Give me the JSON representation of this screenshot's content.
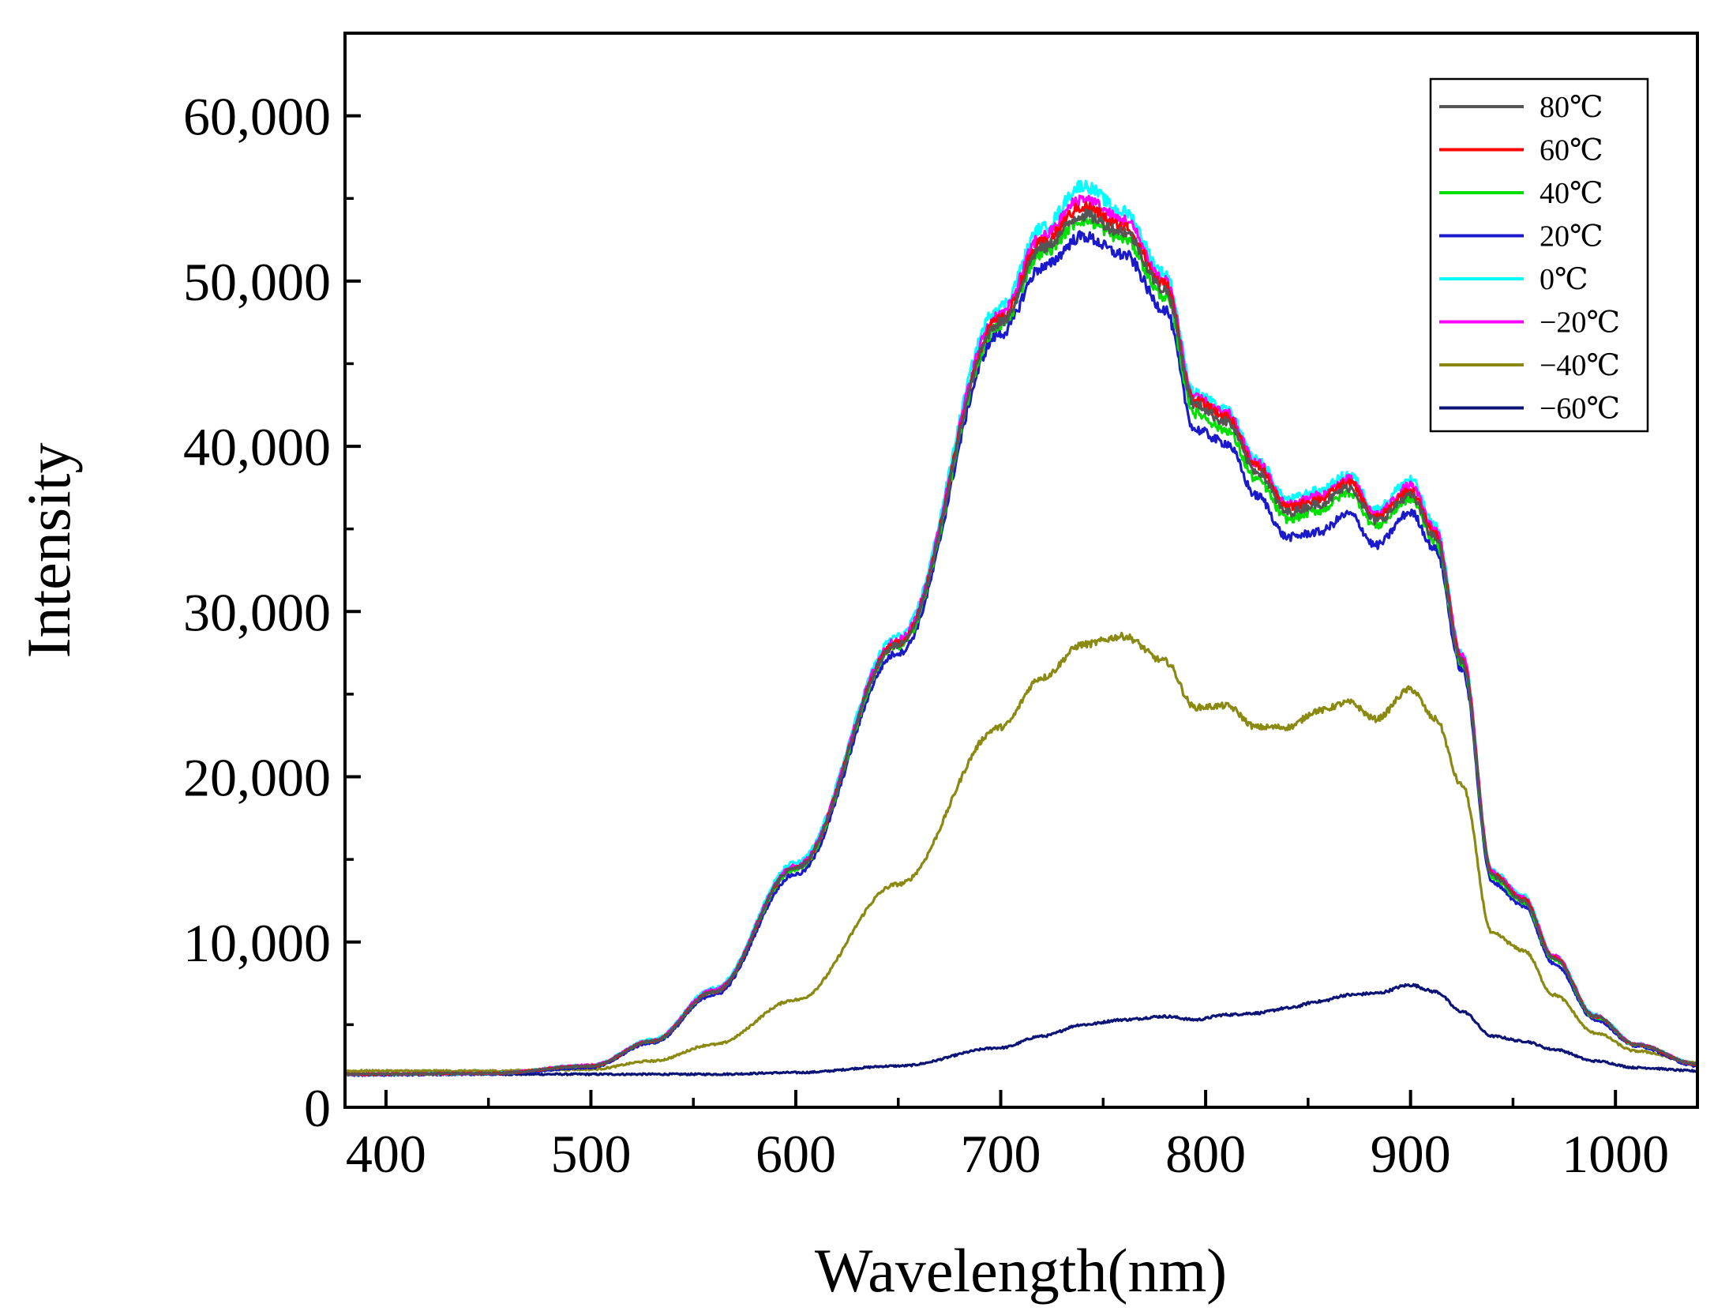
{
  "chart_data": {
    "type": "line",
    "title": "",
    "xlabel": "Wavelength(nm)",
    "ylabel": "Intensity",
    "xlim": [
      380,
      1040
    ],
    "ylim": [
      0,
      65000
    ],
    "xticks": [
      400,
      500,
      600,
      700,
      800,
      900,
      1000
    ],
    "xtick_labels": [
      "400",
      "500",
      "600",
      "700",
      "800",
      "900",
      "1000"
    ],
    "yticks": [
      0,
      10000,
      20000,
      30000,
      40000,
      50000,
      60000
    ],
    "ytick_labels": [
      "0",
      "10,000",
      "20,000",
      "30,000",
      "40,000",
      "50,000",
      "60,000"
    ],
    "grid": false,
    "legend_position": "top-right",
    "x": [
      380,
      450,
      500,
      530,
      560,
      600,
      650,
      700,
      720,
      740,
      760,
      780,
      795,
      810,
      825,
      840,
      855,
      870,
      883,
      900,
      912,
      925,
      940,
      955,
      970,
      990,
      1010,
      1040
    ],
    "series": [
      {
        "name": "80℃",
        "color": "#555555",
        "values": [
          2000,
          2050,
          2500,
          4000,
          7000,
          14500,
          28000,
          47500,
          52000,
          54000,
          53000,
          49500,
          42500,
          41500,
          38500,
          36000,
          36500,
          37500,
          35500,
          37000,
          34500,
          27000,
          14000,
          12500,
          9000,
          5500,
          3800,
          2600
        ]
      },
      {
        "name": "60℃",
        "color": "#ff0000",
        "values": [
          2000,
          2050,
          2500,
          4000,
          7000,
          14500,
          28100,
          47700,
          52300,
          54500,
          53300,
          49800,
          42700,
          41800,
          38800,
          36300,
          36800,
          37800,
          35700,
          37300,
          34700,
          27200,
          14100,
          12600,
          9100,
          5500,
          3800,
          2600
        ]
      },
      {
        "name": "40℃",
        "color": "#00e000",
        "values": [
          2000,
          2050,
          2500,
          4000,
          7000,
          14400,
          27900,
          47300,
          51700,
          53700,
          52600,
          49100,
          42000,
          41000,
          38000,
          35600,
          36100,
          37200,
          35200,
          36800,
          34300,
          26900,
          13900,
          12400,
          8950,
          5450,
          3780,
          2600
        ]
      },
      {
        "name": "20℃",
        "color": "#1a1acc",
        "values": [
          1950,
          2000,
          2400,
          3900,
          6800,
          14100,
          27500,
          46800,
          50800,
          52700,
          51600,
          48300,
          41000,
          40200,
          37000,
          34500,
          34800,
          35900,
          34000,
          36000,
          33800,
          26500,
          13600,
          12200,
          8700,
          5300,
          3700,
          2500
        ]
      },
      {
        "name": "0℃",
        "color": "#00ffff",
        "values": [
          2000,
          2050,
          2550,
          4100,
          7200,
          14800,
          28500,
          48500,
          53200,
          55800,
          54200,
          50500,
          43200,
          42200,
          39200,
          36800,
          37300,
          38300,
          36200,
          38000,
          35200,
          27500,
          14300,
          12800,
          9200,
          5600,
          3850,
          2650
        ]
      },
      {
        "name": "−20℃",
        "color": "#ff00ff",
        "values": [
          2000,
          2050,
          2550,
          4050,
          7100,
          14600,
          28300,
          48000,
          52700,
          55000,
          53700,
          50100,
          42900,
          42000,
          39000,
          36500,
          37000,
          38000,
          35900,
          37600,
          35000,
          27400,
          14200,
          12700,
          9150,
          5550,
          3820,
          2620
        ]
      },
      {
        "name": "−40℃",
        "color": "#8a8a12",
        "values": [
          2200,
          2200,
          2300,
          2800,
          3800,
          6500,
          13500,
          23000,
          26000,
          28000,
          28500,
          27000,
          24200,
          24300,
          23000,
          23000,
          24000,
          24500,
          23500,
          25300,
          23500,
          19500,
          10500,
          9500,
          6800,
          4500,
          3400,
          2700
        ]
      },
      {
        "name": "−60℃",
        "color": "#0c1478",
        "values": [
          2000,
          2000,
          2000,
          2000,
          2000,
          2100,
          2500,
          3600,
          4300,
          5000,
          5300,
          5500,
          5300,
          5600,
          5700,
          6000,
          6400,
          6800,
          6900,
          7400,
          7000,
          5800,
          4300,
          4000,
          3500,
          2800,
          2400,
          2200
        ]
      }
    ]
  }
}
